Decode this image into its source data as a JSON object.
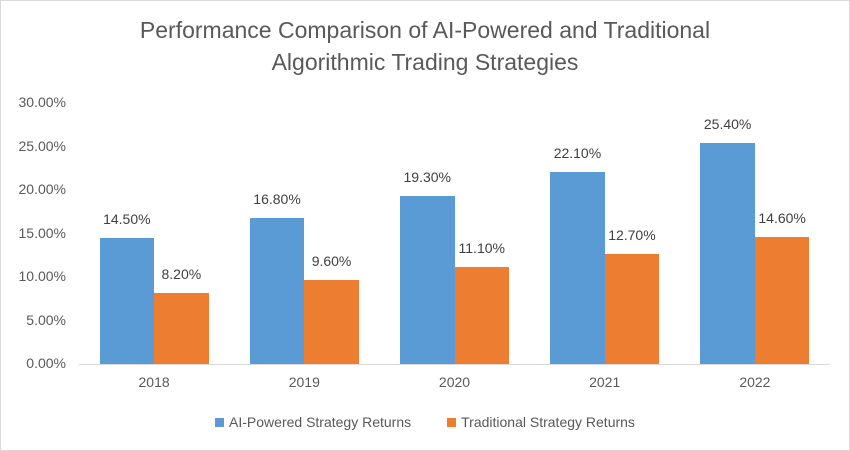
{
  "chart_data": {
    "type": "bar",
    "title": "Performance Comparison of AI-Powered and Traditional Algorithmic Trading Strategies",
    "title_lines": [
      "Performance Comparison of AI-Powered and Traditional",
      "Algorithmic Trading Strategies"
    ],
    "categories": [
      "2018",
      "2019",
      "2020",
      "2021",
      "2022"
    ],
    "series": [
      {
        "name": "AI-Powered Strategy Returns",
        "color": "#5b9bd5",
        "values": [
          14.5,
          16.8,
          19.3,
          22.1,
          25.4
        ],
        "labels": [
          "14.50%",
          "16.80%",
          "19.30%",
          "22.10%",
          "25.40%"
        ]
      },
      {
        "name": "Traditional Strategy Returns",
        "color": "#ed7d31",
        "values": [
          8.2,
          9.6,
          11.1,
          12.7,
          14.6
        ],
        "labels": [
          "8.20%",
          "9.60%",
          "11.10%",
          "12.70%",
          "14.60%"
        ]
      }
    ],
    "xlabel": "",
    "ylabel": "",
    "ylim": [
      0,
      30
    ],
    "yticks": [
      "0.00%",
      "5.00%",
      "10.00%",
      "15.00%",
      "20.00%",
      "25.00%",
      "30.00%"
    ],
    "grid": false,
    "legend_position": "bottom"
  }
}
